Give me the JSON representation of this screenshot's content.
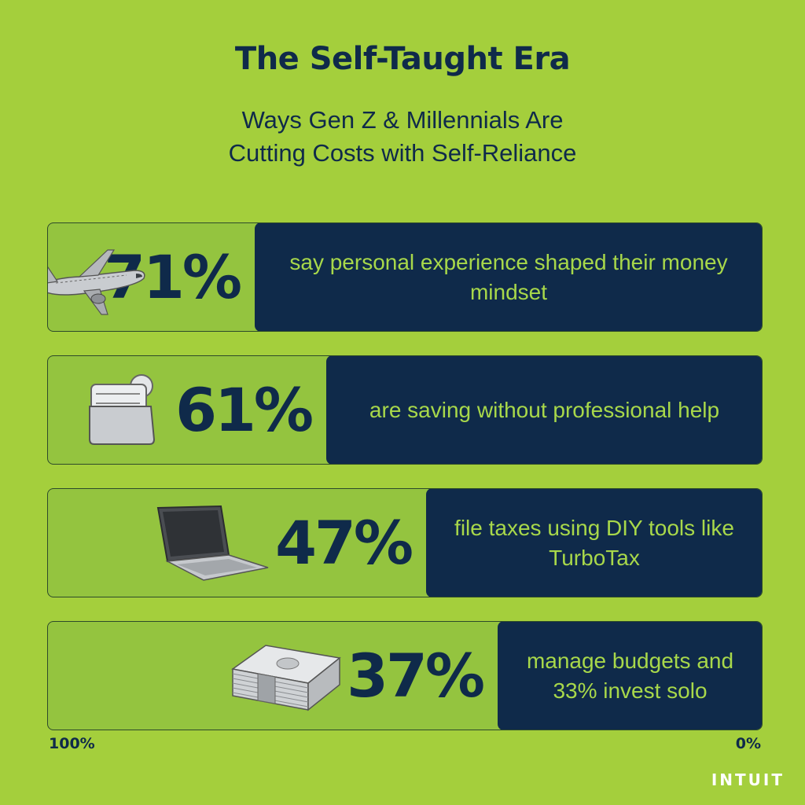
{
  "title": "The Self-Taught Era",
  "subtitle_line1": "Ways Gen Z & Millennials Are",
  "subtitle_line2": "Cutting Costs with Self-Reliance",
  "brand": "INTUIT",
  "colors": {
    "background": "#a4cf3c",
    "track": "#94c43f",
    "bar": "#0f2a4a",
    "bar_text": "#a8d84a",
    "navy": "#0f2a4a"
  },
  "chart_data": {
    "type": "bar",
    "orientation": "horizontal",
    "direction": "right-to-left",
    "xlim": [
      0,
      100
    ],
    "axis_left_label": "100%",
    "axis_right_label": "0%",
    "categories": [
      "say personal experience shaped their money mindset",
      "are saving without professional help",
      "file taxes using DIY tools like TurboTax",
      "manage budgets and 33% invest solo"
    ],
    "values": [
      71,
      61,
      47,
      37
    ],
    "value_labels": [
      "71%",
      "61%",
      "47%",
      "37%"
    ],
    "icons": [
      "airplane-icon",
      "wallet-icon",
      "laptop-icon",
      "money-stack-icon"
    ]
  }
}
